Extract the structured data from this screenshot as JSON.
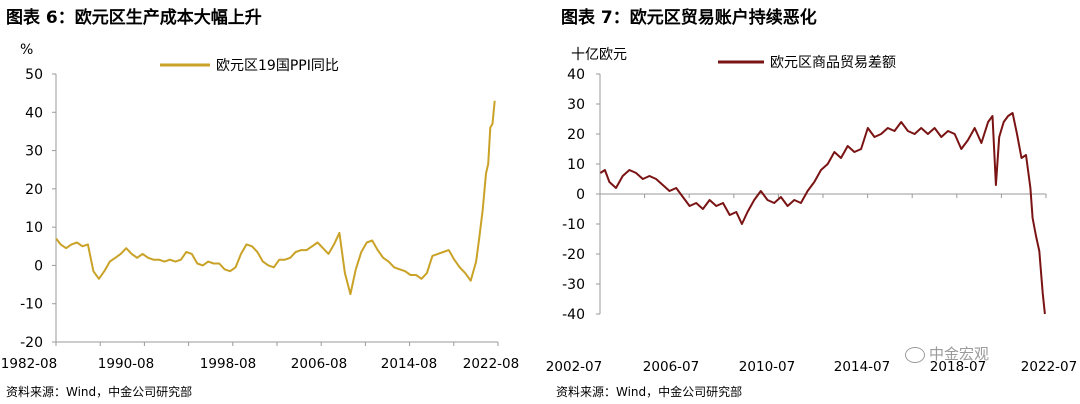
{
  "left_panel": {
    "title": "图表 6：欧元区生产成本大幅上升",
    "source": "资料来源：Wind，中金公司研究部"
  },
  "right_panel": {
    "title": "图表 7：欧元区贸易账户持续恶化",
    "source": "资料来源：Wind，中金公司研究部"
  },
  "watermark": "中金宏观",
  "chart_data": [
    {
      "type": "line",
      "title": "图表 6：欧元区生产成本大幅上升",
      "ylabel": "%",
      "xlabel": "",
      "ylim": [
        -20,
        50
      ],
      "yticks": [
        -20,
        -10,
        0,
        10,
        20,
        30,
        40,
        50
      ],
      "xlim": [
        1982.58,
        2023.0
      ],
      "xticks": [
        "1982-08",
        "1990-08",
        "1998-08",
        "2006-08",
        "2014-08",
        "2022-08"
      ],
      "grid": false,
      "legend": "top-center",
      "color": "#C9A227",
      "series": [
        {
          "name": "欧元区19国PPI同比",
          "x": [
            1982.6,
            1983.0,
            1983.5,
            1984.0,
            1984.5,
            1985.0,
            1985.5,
            1986.0,
            1986.5,
            1987.0,
            1987.5,
            1988.0,
            1988.5,
            1989.0,
            1989.5,
            1990.0,
            1990.5,
            1991.0,
            1991.5,
            1992.0,
            1992.5,
            1993.0,
            1993.5,
            1994.0,
            1994.5,
            1995.0,
            1995.5,
            1996.0,
            1996.5,
            1997.0,
            1997.5,
            1998.0,
            1998.5,
            1999.0,
            1999.5,
            2000.0,
            2000.5,
            2001.0,
            2001.5,
            2002.0,
            2002.5,
            2003.0,
            2003.5,
            2004.0,
            2004.5,
            2005.0,
            2005.5,
            2006.0,
            2006.5,
            2007.0,
            2007.5,
            2008.0,
            2008.5,
            2009.0,
            2009.5,
            2010.0,
            2010.5,
            2011.0,
            2011.5,
            2012.0,
            2012.5,
            2013.0,
            2013.5,
            2014.0,
            2014.5,
            2015.0,
            2015.5,
            2016.0,
            2016.5,
            2017.0,
            2017.5,
            2018.0,
            2018.5,
            2019.0,
            2019.5,
            2020.0,
            2020.5,
            2021.0,
            2021.3,
            2021.6,
            2021.9,
            2022.1,
            2022.3,
            2022.5,
            2022.7
          ],
          "values": [
            7.0,
            5.5,
            4.5,
            5.5,
            6.0,
            5.0,
            5.5,
            -1.5,
            -3.5,
            -1.5,
            1.0,
            2.0,
            3.0,
            4.5,
            3.0,
            2.0,
            3.0,
            2.0,
            1.5,
            1.5,
            1.0,
            1.5,
            1.0,
            1.5,
            3.5,
            3.0,
            0.5,
            0.0,
            1.0,
            0.5,
            0.5,
            -1.0,
            -1.5,
            -0.5,
            3.0,
            5.5,
            5.0,
            3.5,
            1.0,
            0.0,
            -0.5,
            1.5,
            1.5,
            2.0,
            3.5,
            4.0,
            4.0,
            5.0,
            6.0,
            4.5,
            3.0,
            5.5,
            8.5,
            -2.0,
            -7.5,
            -1.0,
            3.5,
            6.0,
            6.5,
            4.0,
            2.0,
            1.0,
            -0.5,
            -1.0,
            -1.5,
            -2.5,
            -2.5,
            -3.5,
            -2.0,
            2.5,
            3.0,
            3.5,
            4.0,
            1.5,
            -0.5,
            -2.0,
            -4.0,
            1.0,
            7.5,
            14.5,
            24.0,
            26.5,
            36.0,
            37.0,
            43.0
          ]
        }
      ]
    },
    {
      "type": "line",
      "title": "图表 7：欧元区贸易账户持续恶化",
      "ylabel": "十亿欧元",
      "xlabel": "",
      "ylim": [
        -40,
        40
      ],
      "yticks": [
        -40,
        -30,
        -20,
        -10,
        0,
        10,
        20,
        30,
        40
      ],
      "xlim": [
        2002.58,
        2022.6
      ],
      "xticks": [
        "2002-07",
        "2006-07",
        "2010-07",
        "2014-07",
        "2018-07",
        "2022-07"
      ],
      "grid": false,
      "legend": "top-right",
      "color": "#7A1414",
      "series": [
        {
          "name": "欧元区商品贸易差额",
          "x": [
            2002.6,
            2002.8,
            2003.0,
            2003.3,
            2003.6,
            2003.9,
            2004.2,
            2004.5,
            2004.8,
            2005.1,
            2005.4,
            2005.7,
            2006.0,
            2006.3,
            2006.6,
            2006.9,
            2007.2,
            2007.5,
            2007.8,
            2008.1,
            2008.4,
            2008.7,
            2008.95,
            2009.2,
            2009.5,
            2009.8,
            2010.1,
            2010.4,
            2010.7,
            2011.0,
            2011.3,
            2011.6,
            2011.9,
            2012.2,
            2012.5,
            2012.8,
            2013.1,
            2013.4,
            2013.7,
            2014.0,
            2014.3,
            2014.6,
            2014.9,
            2015.2,
            2015.5,
            2015.8,
            2016.1,
            2016.4,
            2016.7,
            2017.0,
            2017.3,
            2017.6,
            2017.9,
            2018.2,
            2018.5,
            2018.8,
            2019.1,
            2019.4,
            2019.7,
            2020.0,
            2020.2,
            2020.35,
            2020.5,
            2020.7,
            2020.9,
            2021.1,
            2021.3,
            2021.5,
            2021.7,
            2021.9,
            2022.0,
            2022.15,
            2022.3,
            2022.45,
            2022.55
          ],
          "values": [
            7.0,
            8.0,
            4.0,
            2.0,
            6.0,
            8.0,
            7.0,
            5.0,
            6.0,
            5.0,
            3.0,
            1.0,
            2.0,
            -1.0,
            -4.0,
            -3.0,
            -5.0,
            -2.0,
            -4.0,
            -3.0,
            -7.0,
            -6.0,
            -10.0,
            -6.0,
            -2.0,
            1.0,
            -2.0,
            -3.0,
            -1.0,
            -4.0,
            -2.0,
            -3.0,
            1.0,
            4.0,
            8.0,
            10.0,
            14.0,
            12.0,
            16.0,
            14.0,
            15.0,
            22.0,
            19.0,
            20.0,
            22.0,
            21.0,
            24.0,
            21.0,
            20.0,
            22.0,
            20.0,
            22.0,
            19.0,
            21.0,
            20.0,
            15.0,
            18.0,
            22.0,
            17.0,
            24.0,
            26.0,
            3.0,
            19.0,
            24.0,
            26.0,
            27.0,
            20.0,
            12.0,
            13.0,
            2.0,
            -8.0,
            -14.0,
            -19.0,
            -33.0,
            -40.0
          ]
        }
      ]
    }
  ]
}
